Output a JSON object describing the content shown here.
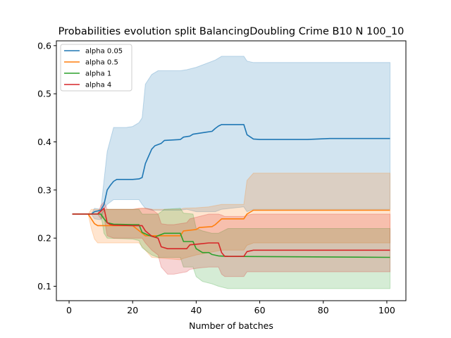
{
  "chart_data": {
    "type": "line",
    "title": "Probabilities evolution split BalancingDoubling Crime B10 N 100_10",
    "xlabel": "Number of batches",
    "ylabel": "",
    "xlim": [
      -4,
      106
    ],
    "ylim": [
      0.07,
      0.61
    ],
    "xticks": [
      0,
      20,
      40,
      60,
      80,
      100
    ],
    "yticks": [
      0.1,
      0.2,
      0.3,
      0.4,
      0.5,
      0.6
    ],
    "grid": false,
    "legend_position": "upper-left",
    "series": [
      {
        "name": "alpha 0.05",
        "color": "#1f77b4",
        "points": [
          [
            1,
            0.25
          ],
          [
            7,
            0.25
          ],
          [
            8,
            0.255
          ],
          [
            10,
            0.258
          ],
          [
            11,
            0.27
          ],
          [
            12,
            0.3
          ],
          [
            13,
            0.31
          ],
          [
            14,
            0.318
          ],
          [
            15,
            0.322
          ],
          [
            20,
            0.322
          ],
          [
            22,
            0.323
          ],
          [
            23,
            0.326
          ],
          [
            24,
            0.355
          ],
          [
            25,
            0.37
          ],
          [
            26,
            0.385
          ],
          [
            27,
            0.392
          ],
          [
            29,
            0.397
          ],
          [
            30,
            0.403
          ],
          [
            35,
            0.405
          ],
          [
            36,
            0.41
          ],
          [
            38,
            0.412
          ],
          [
            39,
            0.416
          ],
          [
            41,
            0.418
          ],
          [
            43,
            0.42
          ],
          [
            45,
            0.422
          ],
          [
            46,
            0.428
          ],
          [
            47,
            0.433
          ],
          [
            48,
            0.436
          ],
          [
            55,
            0.436
          ],
          [
            56,
            0.415
          ],
          [
            58,
            0.406
          ],
          [
            60,
            0.405
          ],
          [
            75,
            0.405
          ],
          [
            82,
            0.407
          ],
          [
            101,
            0.407
          ]
        ],
        "band": [
          [
            1,
            0.25,
            0.25
          ],
          [
            7,
            0.25,
            0.25
          ],
          [
            8,
            0.24,
            0.262
          ],
          [
            10,
            0.238,
            0.26
          ],
          [
            11,
            0.26,
            0.32
          ],
          [
            12,
            0.27,
            0.38
          ],
          [
            14,
            0.28,
            0.43
          ],
          [
            16,
            0.28,
            0.43
          ],
          [
            18,
            0.28,
            0.43
          ],
          [
            20,
            0.28,
            0.432
          ],
          [
            22,
            0.28,
            0.44
          ],
          [
            23,
            0.27,
            0.45
          ],
          [
            24,
            0.262,
            0.52
          ],
          [
            26,
            0.258,
            0.54
          ],
          [
            28,
            0.258,
            0.548
          ],
          [
            35,
            0.258,
            0.548
          ],
          [
            37,
            0.26,
            0.55
          ],
          [
            40,
            0.255,
            0.555
          ],
          [
            46,
            0.255,
            0.57
          ],
          [
            48,
            0.26,
            0.578
          ],
          [
            55,
            0.265,
            0.578
          ],
          [
            56,
            0.255,
            0.568
          ],
          [
            58,
            0.26,
            0.565
          ],
          [
            101,
            0.26,
            0.565
          ]
        ]
      },
      {
        "name": "alpha 0.5",
        "color": "#ff7f0e",
        "points": [
          [
            1,
            0.25
          ],
          [
            6,
            0.25
          ],
          [
            7,
            0.24
          ],
          [
            8,
            0.23
          ],
          [
            9,
            0.226
          ],
          [
            12,
            0.226
          ],
          [
            20,
            0.226
          ],
          [
            24,
            0.205
          ],
          [
            26,
            0.205
          ],
          [
            35,
            0.205
          ],
          [
            36,
            0.215
          ],
          [
            40,
            0.218
          ],
          [
            41,
            0.222
          ],
          [
            45,
            0.224
          ],
          [
            46,
            0.228
          ],
          [
            48,
            0.24
          ],
          [
            55,
            0.24
          ],
          [
            56,
            0.25
          ],
          [
            58,
            0.258
          ],
          [
            101,
            0.258
          ]
        ],
        "band": [
          [
            1,
            0.25,
            0.25
          ],
          [
            6,
            0.25,
            0.25
          ],
          [
            7,
            0.22,
            0.26
          ],
          [
            8,
            0.198,
            0.26
          ],
          [
            9,
            0.19,
            0.26
          ],
          [
            20,
            0.19,
            0.26
          ],
          [
            22,
            0.19,
            0.262
          ],
          [
            24,
            0.175,
            0.262
          ],
          [
            26,
            0.16,
            0.26
          ],
          [
            35,
            0.155,
            0.26
          ],
          [
            36,
            0.158,
            0.262
          ],
          [
            40,
            0.165,
            0.263
          ],
          [
            44,
            0.17,
            0.265
          ],
          [
            48,
            0.175,
            0.27
          ],
          [
            55,
            0.175,
            0.27
          ],
          [
            56,
            0.185,
            0.32
          ],
          [
            58,
            0.19,
            0.335
          ],
          [
            60,
            0.19,
            0.335
          ],
          [
            101,
            0.19,
            0.335
          ]
        ]
      },
      {
        "name": "alpha 1",
        "color": "#2ca02c",
        "points": [
          [
            1,
            0.25
          ],
          [
            10,
            0.25
          ],
          [
            11,
            0.24
          ],
          [
            12,
            0.232
          ],
          [
            14,
            0.229
          ],
          [
            20,
            0.228
          ],
          [
            22,
            0.228
          ],
          [
            23,
            0.212
          ],
          [
            25,
            0.206
          ],
          [
            27,
            0.202
          ],
          [
            28,
            0.205
          ],
          [
            30,
            0.21
          ],
          [
            35,
            0.21
          ],
          [
            36,
            0.193
          ],
          [
            39,
            0.193
          ],
          [
            40,
            0.178
          ],
          [
            42,
            0.17
          ],
          [
            44,
            0.17
          ],
          [
            45,
            0.166
          ],
          [
            47,
            0.163
          ],
          [
            50,
            0.162
          ],
          [
            101,
            0.16
          ]
        ],
        "band": [
          [
            1,
            0.25,
            0.25
          ],
          [
            10,
            0.25,
            0.25
          ],
          [
            11,
            0.21,
            0.258
          ],
          [
            12,
            0.2,
            0.26
          ],
          [
            20,
            0.198,
            0.26
          ],
          [
            22,
            0.195,
            0.26
          ],
          [
            23,
            0.18,
            0.25
          ],
          [
            26,
            0.165,
            0.25
          ],
          [
            28,
            0.16,
            0.25
          ],
          [
            30,
            0.16,
            0.26
          ],
          [
            35,
            0.16,
            0.262
          ],
          [
            36,
            0.14,
            0.252
          ],
          [
            39,
            0.14,
            0.25
          ],
          [
            40,
            0.12,
            0.22
          ],
          [
            42,
            0.11,
            0.215
          ],
          [
            45,
            0.105,
            0.21
          ],
          [
            47,
            0.1,
            0.21
          ],
          [
            50,
            0.095,
            0.22
          ],
          [
            101,
            0.095,
            0.22
          ]
        ]
      },
      {
        "name": "alpha 4",
        "color": "#d62728",
        "points": [
          [
            1,
            0.25
          ],
          [
            9,
            0.25
          ],
          [
            10,
            0.256
          ],
          [
            11,
            0.262
          ],
          [
            12,
            0.232
          ],
          [
            13,
            0.228
          ],
          [
            14,
            0.227
          ],
          [
            20,
            0.226
          ],
          [
            23,
            0.226
          ],
          [
            24,
            0.215
          ],
          [
            26,
            0.204
          ],
          [
            28,
            0.2
          ],
          [
            29,
            0.182
          ],
          [
            31,
            0.178
          ],
          [
            33,
            0.178
          ],
          [
            37,
            0.178
          ],
          [
            38,
            0.186
          ],
          [
            41,
            0.188
          ],
          [
            44,
            0.19
          ],
          [
            47,
            0.19
          ],
          [
            48,
            0.17
          ],
          [
            49,
            0.162
          ],
          [
            55,
            0.162
          ],
          [
            56,
            0.172
          ],
          [
            58,
            0.175
          ],
          [
            101,
            0.175
          ]
        ],
        "band": [
          [
            1,
            0.25,
            0.25
          ],
          [
            9,
            0.25,
            0.25
          ],
          [
            10,
            0.24,
            0.268
          ],
          [
            11,
            0.245,
            0.275
          ],
          [
            12,
            0.205,
            0.26
          ],
          [
            14,
            0.2,
            0.26
          ],
          [
            20,
            0.2,
            0.26
          ],
          [
            23,
            0.2,
            0.262
          ],
          [
            24,
            0.19,
            0.262
          ],
          [
            26,
            0.175,
            0.26
          ],
          [
            28,
            0.165,
            0.25
          ],
          [
            29,
            0.14,
            0.23
          ],
          [
            31,
            0.125,
            0.228
          ],
          [
            33,
            0.125,
            0.228
          ],
          [
            37,
            0.13,
            0.232
          ],
          [
            38,
            0.135,
            0.24
          ],
          [
            41,
            0.138,
            0.245
          ],
          [
            44,
            0.14,
            0.25
          ],
          [
            47,
            0.14,
            0.25
          ],
          [
            48,
            0.125,
            0.248
          ],
          [
            49,
            0.12,
            0.245
          ],
          [
            55,
            0.12,
            0.245
          ],
          [
            56,
            0.13,
            0.248
          ],
          [
            58,
            0.13,
            0.25
          ],
          [
            101,
            0.13,
            0.25
          ]
        ]
      }
    ]
  }
}
